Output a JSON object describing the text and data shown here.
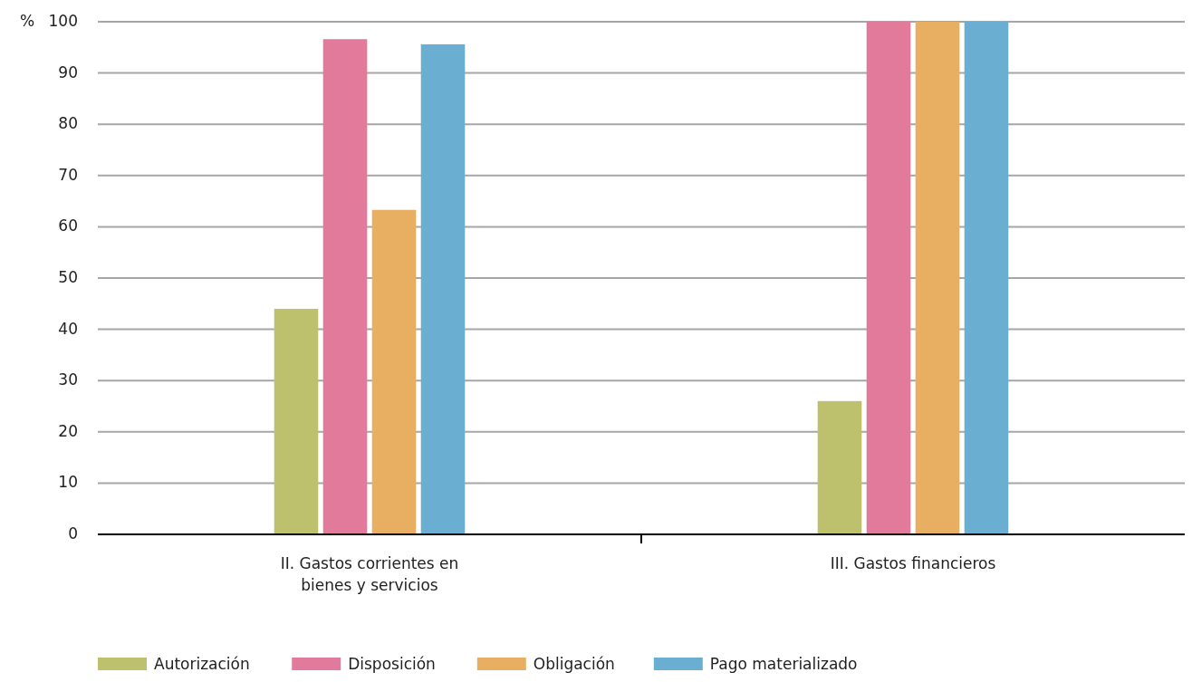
{
  "chart_data": {
    "type": "bar",
    "ylabel": "%",
    "categories": [
      "II. Gastos corrientes en bienes y servicios",
      "III. Gastos financieros"
    ],
    "series": [
      {
        "name": "Autorización",
        "color": "#bdc06c",
        "values": [
          44.0,
          26.0
        ]
      },
      {
        "name": "Disposición",
        "color": "#e27b9b",
        "values": [
          96.6,
          100
        ]
      },
      {
        "name": "Obligación",
        "color": "#e8ae62",
        "values": [
          63.3,
          100
        ]
      },
      {
        "name": "Pago materializado",
        "color": "#6aaed2",
        "values": [
          95.6,
          100
        ]
      }
    ],
    "ylim": [
      0,
      100
    ],
    "yticks": [
      0,
      10,
      20,
      30,
      40,
      50,
      60,
      70,
      80,
      90,
      100
    ],
    "grid": "y",
    "legend": "bottom"
  }
}
